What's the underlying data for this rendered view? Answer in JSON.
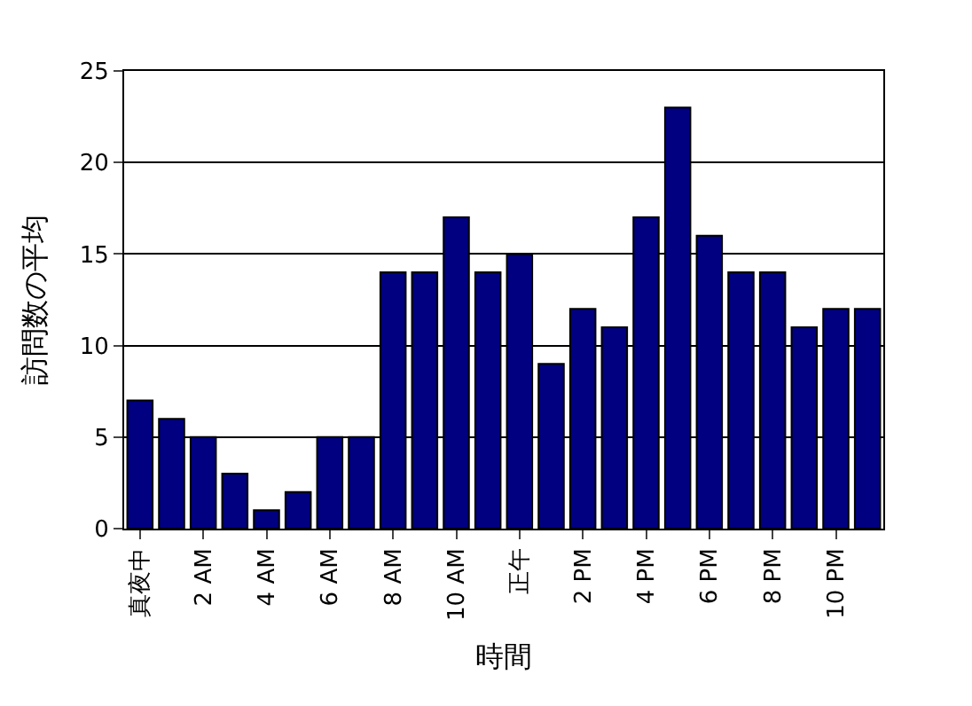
{
  "chart_data": {
    "type": "bar",
    "xlabel": "時間",
    "ylabel": "訪問数の平均",
    "categories": [
      "真夜中",
      null,
      "2 AM",
      null,
      "4 AM",
      null,
      "6 AM",
      null,
      "8 AM",
      null,
      "10 AM",
      null,
      "正午",
      null,
      "2 PM",
      null,
      "4 PM",
      null,
      "6 PM",
      null,
      "8 PM",
      null,
      "10 PM",
      null
    ],
    "values": [
      7,
      6,
      5,
      3,
      1,
      2,
      5,
      5,
      14,
      14,
      17,
      14,
      15,
      9,
      12,
      11,
      17,
      23,
      16,
      14,
      14,
      11,
      12,
      12
    ],
    "color": "#000080",
    "ylim": [
      0,
      25
    ],
    "yticks": [
      0,
      5,
      10,
      15,
      20,
      25
    ],
    "grid": "y"
  }
}
